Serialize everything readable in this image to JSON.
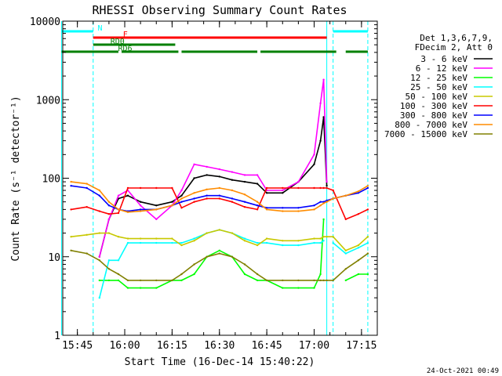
{
  "chart_data": {
    "type": "line",
    "title": "RHESSI Observing Summary Count Rates",
    "xlabel": "Start Time (16-Dec-14 15:40:22)",
    "ylabel": "Count Rate (s⁻¹ detector⁻¹)",
    "yscale": "log",
    "ylim": [
      1,
      10000
    ],
    "xlim": [
      "15:40:22",
      "17:20:00"
    ],
    "xticks": [
      "15:45",
      "16:00",
      "16:15",
      "16:30",
      "16:45",
      "17:00",
      "17:15"
    ],
    "yticks": [
      "1",
      "10",
      "100",
      "1000",
      "10000"
    ],
    "timestamp": "24-Oct-2021 00:49",
    "legend_header": [
      "Det 1,3,6,7,9,",
      "FDecim 2, Att 0"
    ],
    "legend_position": "right",
    "flags": [
      {
        "label": "N",
        "color": "#00ffff",
        "segments": [
          [
            "15:40",
            "15:50"
          ],
          [
            "17:06",
            "17:17"
          ]
        ]
      },
      {
        "label": "F",
        "color": "#ff0000",
        "segments": [
          [
            "15:50",
            "17:04"
          ]
        ]
      },
      {
        "label": "RD0",
        "color": "#008000",
        "segments": [
          [
            "15:50",
            "16:16"
          ]
        ]
      },
      {
        "label": "RD6",
        "color": "#008000",
        "segments": [
          [
            "15:40",
            "15:58"
          ],
          [
            "15:59",
            "16:17"
          ],
          [
            "16:18",
            "16:42"
          ],
          [
            "16:43",
            "17:07"
          ],
          [
            "17:10",
            "17:17"
          ]
        ]
      }
    ],
    "vertical_markers": [
      {
        "time": "15:40",
        "color": "#00ffff",
        "style": "solid"
      },
      {
        "time": "15:50",
        "color": "#00ffff",
        "style": "dashed"
      },
      {
        "time": "17:04",
        "color": "#00ffff",
        "style": "solid"
      },
      {
        "time": "17:06",
        "color": "#00ffff",
        "style": "dashed"
      },
      {
        "time": "17:17",
        "color": "#00ffff",
        "style": "dashed"
      }
    ],
    "x": [
      "15:43",
      "15:48",
      "15:52",
      "15:55",
      "15:58",
      "16:01",
      "16:05",
      "16:10",
      "16:15",
      "16:18",
      "16:22",
      "16:26",
      "16:30",
      "16:34",
      "16:38",
      "16:42",
      "16:45",
      "16:50",
      "16:55",
      "17:00",
      "17:02",
      "17:03",
      "17:04",
      "17:06",
      "17:10",
      "17:14",
      "17:17"
    ],
    "series": [
      {
        "name": "3 - 6 keV",
        "color": "#000000",
        "values": [
          null,
          null,
          10,
          30,
          55,
          60,
          50,
          45,
          50,
          60,
          100,
          110,
          105,
          95,
          90,
          85,
          65,
          65,
          90,
          150,
          300,
          600,
          80,
          null,
          null,
          null,
          null
        ]
      },
      {
        "name": "6 - 12 keV",
        "color": "#ff00ff",
        "values": [
          null,
          null,
          10,
          30,
          60,
          70,
          45,
          30,
          45,
          70,
          150,
          140,
          130,
          120,
          110,
          110,
          70,
          70,
          90,
          200,
          900,
          1800,
          90,
          null,
          null,
          null,
          null
        ]
      },
      {
        "name": "12 - 25 keV",
        "color": "#00ff00",
        "values": [
          null,
          null,
          5,
          5,
          5,
          4,
          4,
          4,
          5,
          5,
          6,
          10,
          12,
          10,
          6,
          5,
          5,
          4,
          4,
          4,
          6,
          30,
          null,
          null,
          5,
          6,
          6
        ]
      },
      {
        "name": "25 - 50 keV",
        "color": "#00ffff",
        "values": [
          null,
          null,
          3,
          9,
          9,
          15,
          15,
          15,
          15,
          15,
          17,
          20,
          22,
          20,
          17,
          15,
          15,
          14,
          14,
          15,
          15,
          16,
          null,
          15,
          11,
          13,
          15
        ]
      },
      {
        "name": "50 - 100 keV",
        "color": "#c8c800",
        "values": [
          18,
          19,
          20,
          20,
          18,
          17,
          17,
          17,
          17,
          14,
          16,
          20,
          22,
          20,
          16,
          14,
          17,
          16,
          16,
          17,
          17,
          18,
          18,
          18,
          12,
          14,
          18
        ]
      },
      {
        "name": "100 - 300 keV",
        "color": "#ff0000",
        "values": [
          40,
          43,
          38,
          35,
          36,
          75,
          75,
          75,
          75,
          42,
          50,
          55,
          55,
          50,
          43,
          40,
          75,
          75,
          75,
          75,
          75,
          75,
          75,
          70,
          30,
          35,
          40
        ]
      },
      {
        "name": "300 - 800 keV",
        "color": "#0000ff",
        "values": [
          80,
          75,
          60,
          45,
          40,
          38,
          40,
          40,
          45,
          50,
          55,
          60,
          60,
          55,
          50,
          45,
          42,
          42,
          42,
          45,
          50,
          50,
          52,
          55,
          60,
          65,
          75
        ]
      },
      {
        "name": "800 - 7000 keV",
        "color": "#ff8c00",
        "values": [
          90,
          85,
          70,
          50,
          40,
          37,
          38,
          40,
          45,
          55,
          65,
          72,
          75,
          70,
          62,
          50,
          40,
          38,
          38,
          40,
          45,
          48,
          50,
          55,
          60,
          68,
          80
        ]
      },
      {
        "name": "7000 - 15000 keV",
        "color": "#808000",
        "values": [
          12,
          11,
          9,
          7,
          6,
          5,
          5,
          5,
          5,
          6,
          8,
          10,
          11,
          10,
          8,
          6,
          5,
          5,
          5,
          5,
          5,
          5,
          5,
          5,
          7,
          9,
          11
        ]
      }
    ]
  }
}
